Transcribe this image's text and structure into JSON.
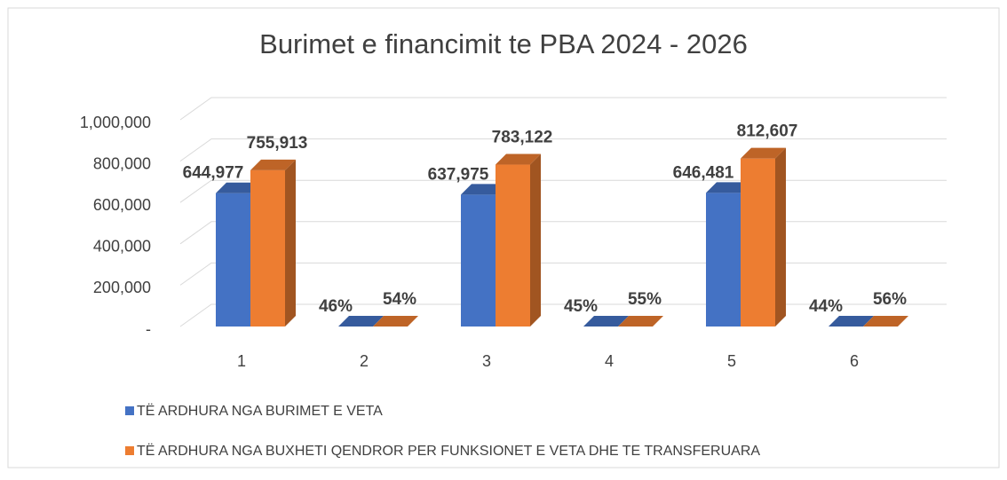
{
  "chart_data": {
    "type": "bar3d",
    "title": "Burimet e financimit te PBA 2024 - 2026",
    "categories": [
      "1",
      "2",
      "3",
      "4",
      "5",
      "6"
    ],
    "series": [
      {
        "name": "TË ARDHURA NGA BURIMET E VETA",
        "color": "#4472c4",
        "values": [
          644977,
          0.46,
          637975,
          0.45,
          646481,
          0.44
        ],
        "value_labels": [
          "644,977",
          "46%",
          "637,975",
          "45%",
          "646,481",
          "44%"
        ]
      },
      {
        "name": "TË ARDHURA NGA BUXHETI QENDROR PER FUNKSIONET E VETA DHE TE TRANSFERUARA",
        "color": "#ed7d31",
        "values": [
          755913,
          0.54,
          783122,
          0.55,
          812607,
          0.56
        ],
        "value_labels": [
          "755,913",
          "54%",
          "783,122",
          "55%",
          "812,607",
          "56%"
        ]
      }
    ],
    "ylim": [
      0,
      1000000
    ],
    "yticks": [
      {
        "value": 0,
        "label": "-"
      },
      {
        "value": 200000,
        "label": "200,000"
      },
      {
        "value": 400000,
        "label": "400,000"
      },
      {
        "value": 600000,
        "label": "600,000"
      },
      {
        "value": 800000,
        "label": "800,000"
      },
      {
        "value": 1000000,
        "label": "1,000,000"
      }
    ],
    "grid": true,
    "legend": "bottom"
  }
}
